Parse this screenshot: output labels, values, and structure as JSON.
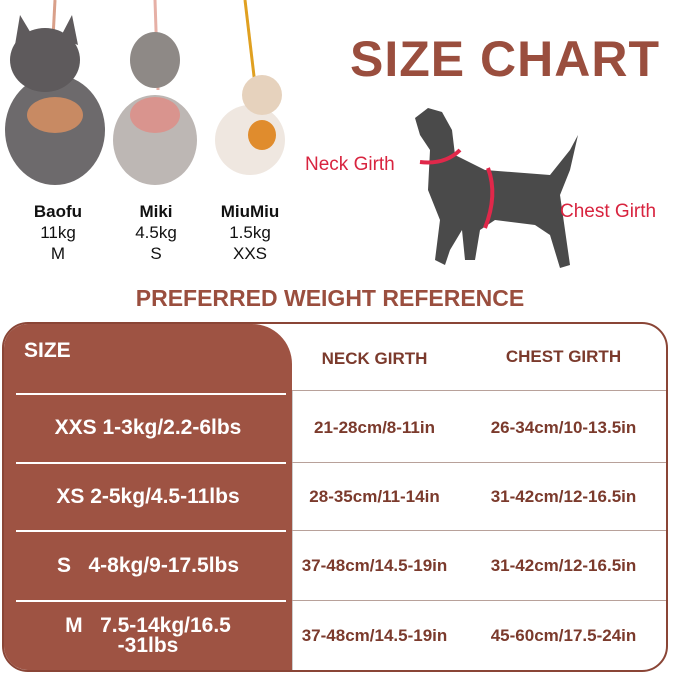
{
  "title": "SIZE CHART",
  "dogs": [
    {
      "name": "Baofu",
      "weight": "11kg",
      "size": "M"
    },
    {
      "name": "Miki",
      "weight": "4.5kg",
      "size": "S"
    },
    {
      "name": "MiuMiu",
      "weight": "1.5kg",
      "size": "XXS"
    }
  ],
  "diagram": {
    "neck_label": "Neck Girth",
    "chest_label": "Chest Girth"
  },
  "reference_title": "PREFERRED WEIGHT REFERENCE",
  "table": {
    "headers": [
      "SIZE",
      "NECK GIRTH",
      "CHEST GIRTH"
    ],
    "rows": [
      {
        "size": "XXS 1-3kg/2.2-6lbs",
        "neck": "21-28cm/8-11in",
        "chest": "26-34cm/10-13.5in"
      },
      {
        "size": "XS 2-5kg/4.5-11lbs",
        "neck": "28-35cm/11-14in",
        "chest": "31-42cm/12-16.5in"
      },
      {
        "size": "S   4-8kg/9-17.5lbs",
        "neck": "37-48cm/14.5-19in",
        "chest": "31-42cm/12-16.5in"
      },
      {
        "size": "M   7.5-14kg/16.5 -31lbs",
        "neck": "37-48cm/14.5-19in",
        "chest": "45-60cm/17.5-24in"
      }
    ]
  },
  "colors": {
    "brand": "#9e5343",
    "text": "#7b3a2c",
    "girth": "#d8243f"
  }
}
